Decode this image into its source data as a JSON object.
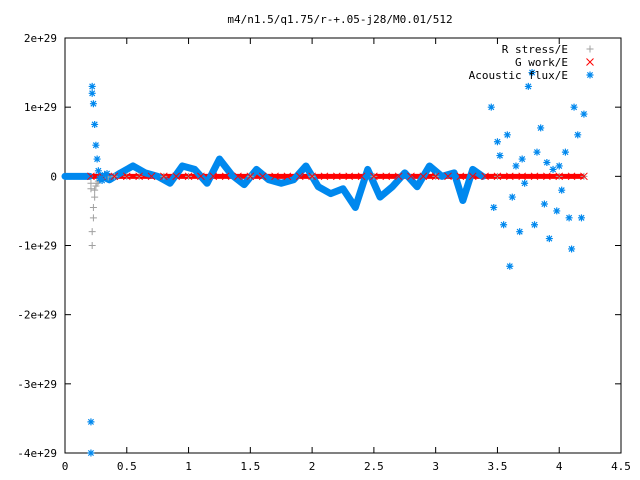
{
  "chart_data": {
    "type": "scatter",
    "title": "m4/n1.5/q1.75/r-+.05-j28/M0.01/512",
    "xlabel": "",
    "ylabel": "",
    "xlim": [
      0,
      4.5
    ],
    "ylim": [
      -4e+29,
      2e+29
    ],
    "x_ticks": [
      0,
      0.5,
      1,
      1.5,
      2,
      2.5,
      3,
      3.5,
      4,
      4.5
    ],
    "x_tick_labels": [
      "0",
      "0.5",
      "1",
      "1.5",
      "2",
      "2.5",
      "3",
      "3.5",
      "4",
      "4.5"
    ],
    "y_ticks": [
      -4e+29,
      -3e+29,
      -2e+29,
      -1e+29,
      0,
      1e+29,
      2e+29
    ],
    "y_tick_labels": [
      "-4e+29",
      "-3e+29",
      "-2e+29",
      "-1e+29",
      "0",
      "1e+29",
      "2e+29"
    ],
    "legend_position": "top-right",
    "series": [
      {
        "name": "R stress/E",
        "marker": "+",
        "color": "#a0a0a0",
        "x": [
          0.21,
          0.21,
          0.22,
          0.22,
          0.23,
          0.23,
          0.24,
          0.24,
          0.25,
          0.26,
          0.27,
          0.28,
          0.3,
          0.35,
          0.4,
          0.5,
          0.6,
          0.8,
          1.0,
          1.5,
          2.0,
          2.5,
          3.0,
          3.5,
          4.0,
          4.2
        ],
        "y": [
          -1e+28,
          -1.8e+28,
          -1e+29,
          -8e+28,
          -6e+28,
          -4.5e+28,
          -3e+28,
          -2e+28,
          -1.4e+28,
          -1e+28,
          -7e+27,
          -5e+27,
          -3e+27,
          -1e+27,
          0,
          0,
          0,
          0,
          0,
          0,
          0,
          0,
          0,
          0,
          0,
          0
        ]
      },
      {
        "name": "G work/E",
        "marker": "x",
        "color": "#ff0000",
        "x": [
          0.21,
          0.3,
          0.4,
          0.5,
          0.6,
          0.7,
          0.8,
          0.9,
          1.0,
          1.1,
          1.2,
          1.3,
          1.4,
          1.5,
          1.6,
          1.7,
          1.8,
          1.9,
          2.0,
          2.1,
          2.2,
          2.3,
          2.4,
          2.5,
          2.6,
          2.7,
          2.8,
          2.9,
          3.0,
          3.1,
          3.2,
          3.3,
          3.4,
          3.5,
          3.6,
          3.7,
          3.8,
          3.9,
          4.0,
          4.1,
          4.2
        ],
        "y": [
          0,
          0,
          0,
          0,
          0,
          0,
          0,
          0,
          0,
          0,
          0,
          0,
          0,
          0,
          0,
          0,
          0,
          0,
          0,
          0,
          0,
          0,
          0,
          0,
          0,
          0,
          0,
          0,
          0,
          0,
          0,
          0,
          0,
          0,
          0,
          0,
          0,
          0,
          0,
          0,
          0
        ]
      },
      {
        "name": "Acoustic flux/E",
        "marker": "*",
        "color": "#0088ee",
        "x": [
          0.21,
          0.21,
          0.22,
          0.22,
          0.23,
          0.24,
          0.25,
          0.26,
          0.27,
          0.28,
          0.3,
          0.32,
          0.34,
          3.45,
          3.47,
          3.5,
          3.52,
          3.55,
          3.58,
          3.6,
          3.62,
          3.65,
          3.68,
          3.7,
          3.72,
          3.75,
          3.78,
          3.8,
          3.82,
          3.85,
          3.88,
          3.9,
          3.92,
          3.95,
          3.98,
          4.0,
          4.02,
          4.05,
          4.08,
          4.1,
          4.12,
          4.15,
          4.18,
          4.2
        ],
        "y": [
          -4e+29,
          -3.55e+29,
          1.3e+29,
          1.2e+29,
          1.05e+29,
          7.5e+28,
          4.5e+28,
          2.5e+28,
          8e+27,
          -3e+27,
          -6e+27,
          2e+27,
          4e+27,
          1e+29,
          -4.5e+28,
          5e+28,
          3e+28,
          -7e+28,
          6e+28,
          -1.3e+29,
          -3e+28,
          1.5e+28,
          -8e+28,
          2.5e+28,
          -1e+28,
          1.3e+29,
          1.5e+29,
          -7e+28,
          3.5e+28,
          7e+28,
          -4e+28,
          2e+28,
          -9e+28,
          1e+28,
          -5e+28,
          1.5e+28,
          -2e+28,
          3.5e+28,
          -6e+28,
          -1.05e+29,
          1e+29,
          6e+28,
          -6e+28,
          9e+28
        ]
      }
    ],
    "curve_segments": [
      {
        "x": [
          0.0,
          0.2
        ],
        "y": [
          0,
          0
        ]
      },
      {
        "x": [
          0.3,
          0.36,
          0.45,
          0.55,
          0.65,
          0.75,
          0.85,
          0.95,
          1.05,
          1.15,
          1.25,
          1.35,
          1.45,
          1.55,
          1.65,
          1.75,
          1.85,
          1.95,
          2.05,
          2.15,
          2.25,
          2.35,
          2.45,
          2.55,
          2.65,
          2.75,
          2.85,
          2.95,
          3.05,
          3.15,
          3.22,
          3.3,
          3.38
        ],
        "y": [
          0,
          -5e+27,
          5e+27,
          1.5e+28,
          5e+27,
          0,
          -1e+28,
          1.5e+28,
          1e+28,
          -1e+28,
          2.5e+28,
          2e+27,
          -1.2e+28,
          1e+28,
          -5e+27,
          -1e+28,
          -5e+27,
          1.5e+28,
          -1.5e+28,
          -2.5e+28,
          -1.8e+28,
          -4.5e+28,
          1e+28,
          -3e+28,
          -1.5e+28,
          5e+27,
          -1.5e+28,
          1.5e+28,
          0,
          5e+27,
          -3.5e+28,
          1e+28,
          0
        ]
      }
    ]
  }
}
